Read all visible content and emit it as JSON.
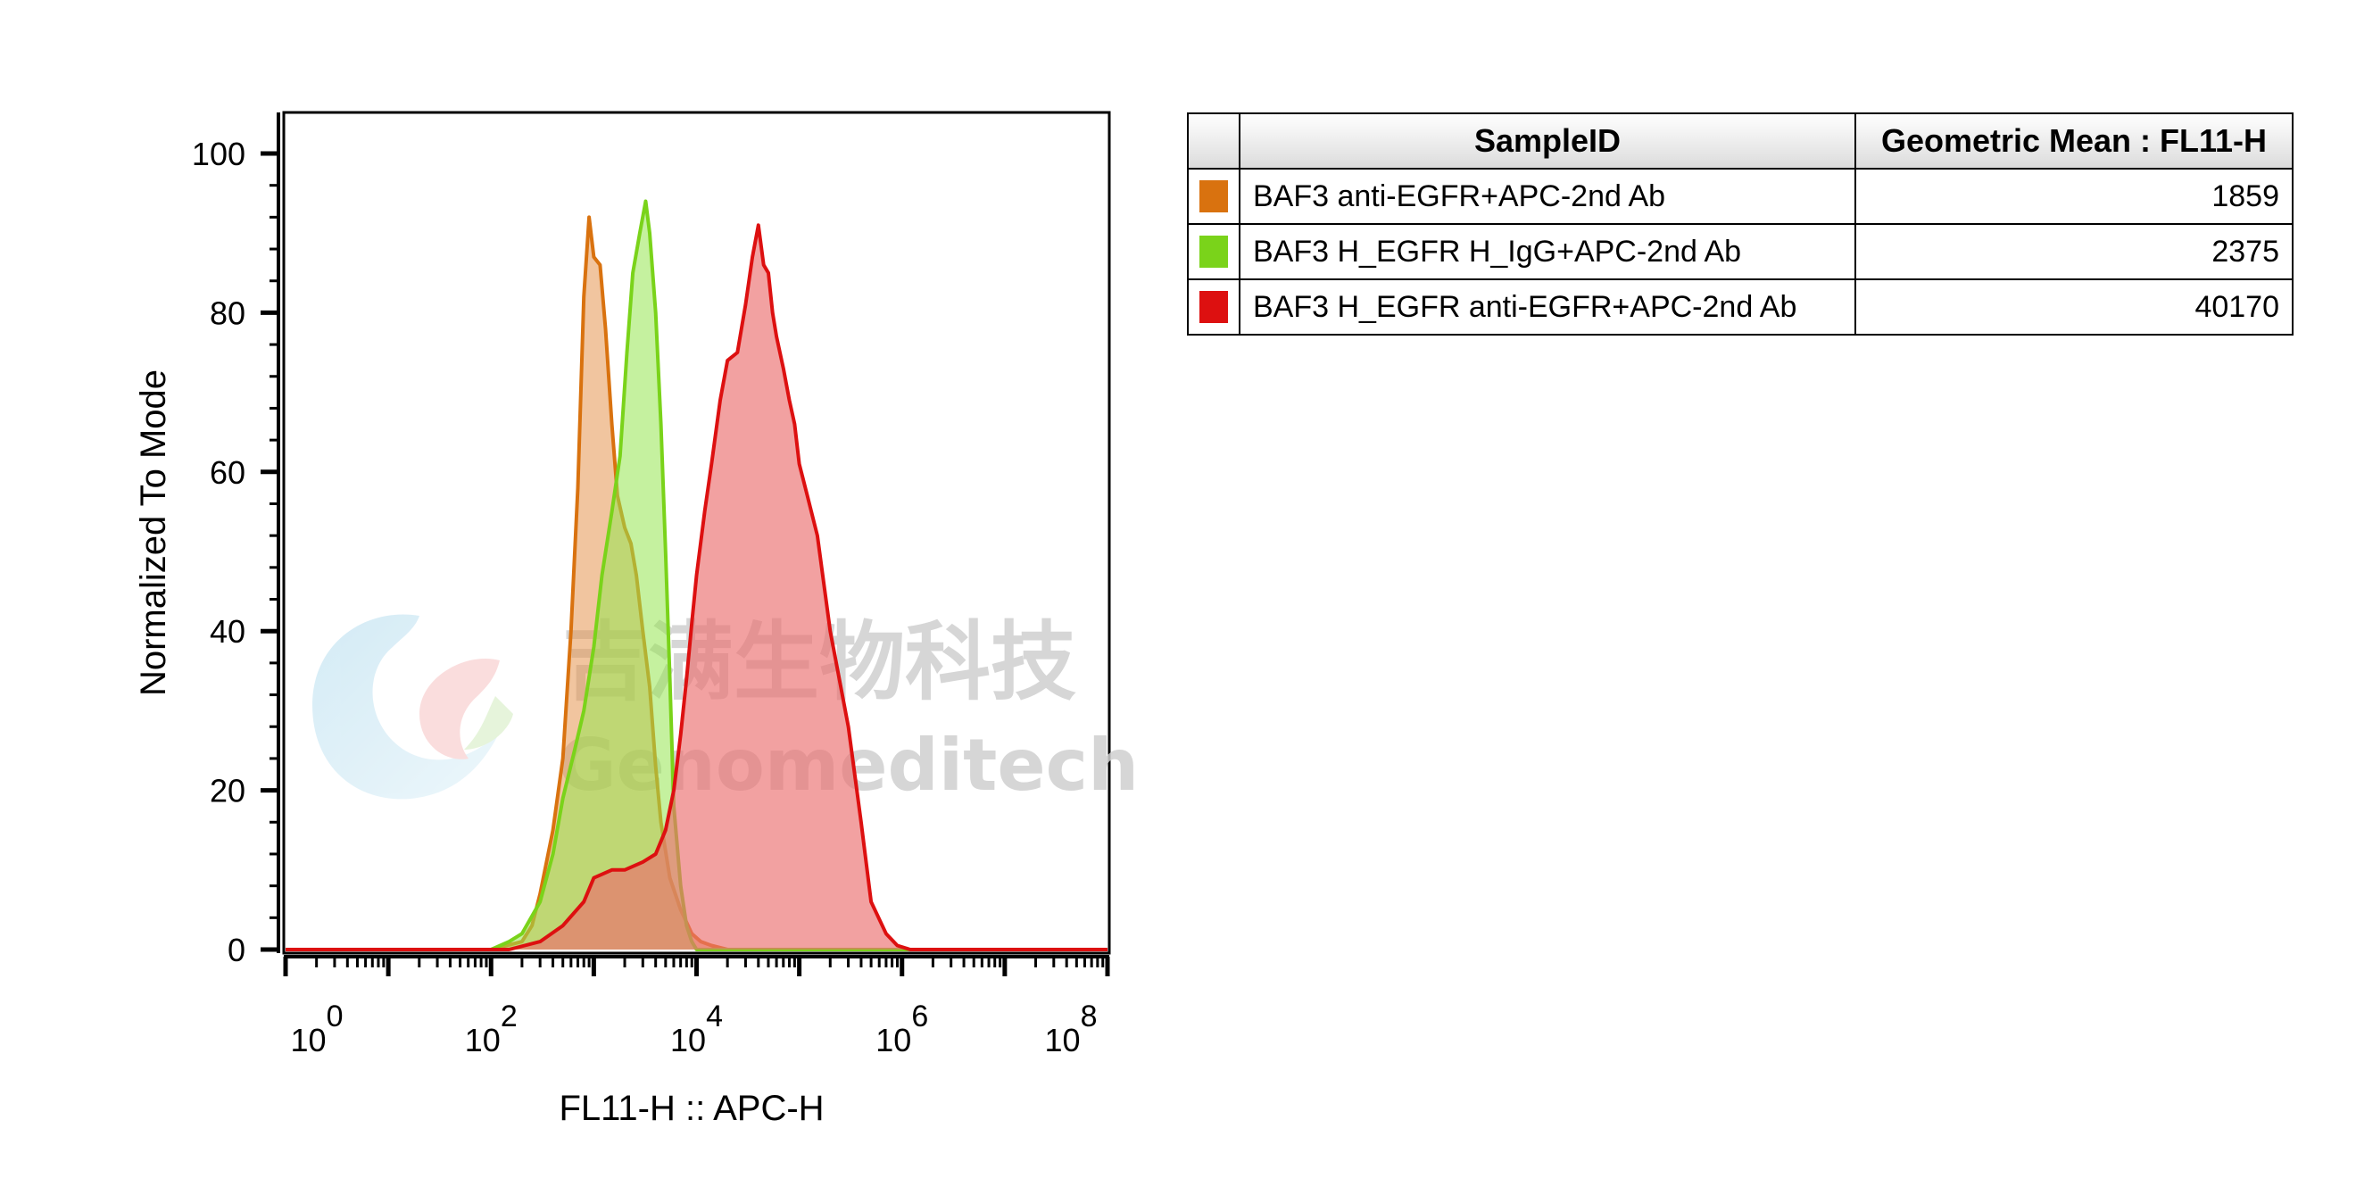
{
  "chart_data": {
    "type": "area",
    "xlabel": "FL11-H :: APC-H",
    "ylabel": "Normalized To Mode",
    "xscale": "log",
    "xlim": [
      1,
      100000000
    ],
    "ylim": [
      0,
      100
    ],
    "y_ticks": [
      "0",
      "20",
      "40",
      "60",
      "80",
      "100"
    ],
    "x_ticks": [
      {
        "base": "10",
        "exp": "0"
      },
      {
        "base": "10",
        "exp": "2"
      },
      {
        "base": "10",
        "exp": "4"
      },
      {
        "base": "10",
        "exp": "6"
      },
      {
        "base": "10",
        "exp": "8"
      }
    ],
    "series": [
      {
        "name": "BAF3 anti-EGFR+APC-2nd Ab",
        "color": "#d9720f",
        "fill": "rgba(230,150,80,0.55)",
        "x": [
          1,
          100,
          200,
          250,
          300,
          400,
          500,
          600,
          700,
          800,
          900,
          1000,
          1150,
          1300,
          1500,
          1700,
          2000,
          2300,
          2600,
          3000,
          3500,
          4000,
          4500,
          5500,
          7000,
          9000,
          11000,
          14000,
          20000,
          100000000
        ],
        "y": [
          0,
          0,
          1,
          3,
          7,
          15,
          24,
          40,
          58,
          82,
          92,
          87,
          86,
          78,
          66,
          57,
          53,
          51,
          47,
          40,
          33,
          23,
          16,
          9,
          5,
          2,
          1,
          0.5,
          0,
          0
        ]
      },
      {
        "name": "BAF3 H_EGFR H_IgG+APC-2nd Ab",
        "color": "#7ad31a",
        "fill": "rgba(150,230,80,0.55)",
        "x": [
          1,
          100,
          150,
          200,
          300,
          400,
          500,
          650,
          800,
          1000,
          1200,
          1500,
          1800,
          2100,
          2400,
          2800,
          3200,
          3500,
          4000,
          4500,
          5000,
          5500,
          6000,
          7000,
          8000,
          9000,
          10000,
          100000000
        ],
        "y": [
          0,
          0,
          1,
          2,
          6,
          12,
          19,
          25,
          30,
          38,
          47,
          55,
          62,
          75,
          85,
          90,
          94,
          90,
          80,
          66,
          50,
          34,
          18,
          8,
          3,
          1,
          0,
          0
        ]
      },
      {
        "name": "BAF3 H_EGFR anti-EGFR+APC-2nd Ab",
        "color": "#dd1010",
        "fill": "rgba(235,110,110,0.65)",
        "x": [
          1,
          150,
          300,
          500,
          800,
          1000,
          1500,
          2000,
          3000,
          4000,
          5000,
          6000,
          7000,
          8000,
          9000,
          10000,
          12000,
          14000,
          17000,
          20000,
          25000,
          30000,
          35000,
          40000,
          45000,
          50000,
          55000,
          60000,
          70000,
          80000,
          90000,
          100000,
          120000,
          150000,
          200000,
          300000,
          400000,
          500000,
          700000,
          900000,
          1200000,
          100000000
        ],
        "y": [
          0,
          0,
          1,
          3,
          6,
          9,
          10,
          10,
          11,
          12,
          15,
          20,
          27,
          34,
          41,
          47,
          55,
          61,
          69,
          74,
          75,
          81,
          87,
          91,
          86,
          85,
          80,
          77,
          73,
          69,
          66,
          61,
          57,
          52,
          40,
          28,
          16,
          6,
          2,
          0.5,
          0,
          0
        ]
      }
    ],
    "watermark": {
      "cn": "吉满生物科技",
      "en": "Genomeditech"
    }
  },
  "table": {
    "headers": [
      "",
      "SampleID",
      "Geometric Mean : FL11-H"
    ],
    "rows": [
      {
        "color": "#d9720f",
        "sample": "BAF3 anti-EGFR+APC-2nd Ab",
        "value": "1859"
      },
      {
        "color": "#7ad31a",
        "sample": "BAF3 H_EGFR H_IgG+APC-2nd Ab",
        "value": "2375"
      },
      {
        "color": "#dd1010",
        "sample": "BAF3 H_EGFR anti-EGFR+APC-2nd Ab",
        "value": "40170"
      }
    ]
  }
}
